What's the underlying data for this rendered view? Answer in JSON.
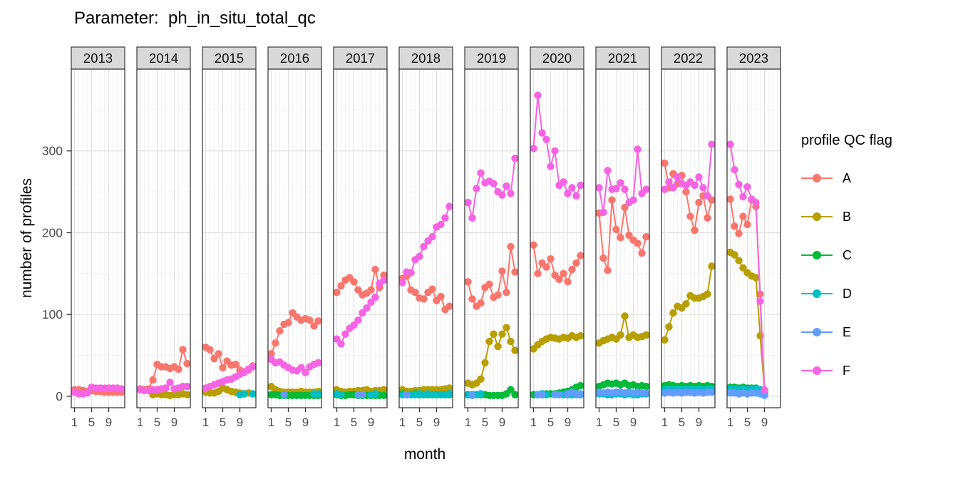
{
  "title": "Parameter:  ph_in_situ_total_qc",
  "chart_data": {
    "type": "line",
    "title": "Parameter:  ph_in_situ_total_qc",
    "xlabel": "month",
    "ylabel": "number of profiles",
    "legend_title": "profile QC flag",
    "legend_position": "right",
    "grid": true,
    "facet_years": [
      "2013",
      "2014",
      "2015",
      "2016",
      "2017",
      "2018",
      "2019",
      "2020",
      "2021",
      "2022",
      "2023"
    ],
    "x_ticks": [
      1,
      5,
      9
    ],
    "x_tick_labels": [
      "1",
      "5",
      "9"
    ],
    "y_ticks": [
      0,
      100,
      200,
      300
    ],
    "y_minor_ticks": [
      50,
      150,
      250,
      350
    ],
    "xlim": [
      0.5,
      12.5
    ],
    "ylim": [
      -14,
      400
    ],
    "strip_fill": "#D9D9D9",
    "series": [
      {
        "name": "A",
        "color": "#F8766D",
        "values_by_year": {
          "2013": [
            8,
            8,
            7,
            6,
            7,
            6,
            6,
            5,
            5,
            5,
            5,
            5
          ],
          "2014": [
            9,
            8,
            9,
            20,
            39,
            36,
            36,
            34,
            36,
            33,
            57,
            40
          ],
          "2015": [
            60,
            57,
            46,
            52,
            35,
            43,
            38,
            39,
            32,
            29,
            32,
            37
          ],
          "2016": [
            52,
            65,
            80,
            88,
            90,
            102,
            97,
            93,
            95,
            93,
            86,
            92
          ],
          "2017": [
            127,
            135,
            142,
            145,
            140,
            130,
            124,
            126,
            130,
            155,
            133,
            148
          ],
          "2018": [
            144,
            147,
            130,
            127,
            120,
            119,
            127,
            131,
            117,
            122,
            106,
            110
          ],
          "2019": [
            140,
            119,
            110,
            114,
            133,
            137,
            121,
            124,
            153,
            127,
            183,
            152
          ],
          "2020": [
            185,
            150,
            163,
            158,
            168,
            148,
            143,
            150,
            140,
            155,
            163,
            172
          ],
          "2021": [
            224,
            169,
            154,
            240,
            204,
            194,
            231,
            197,
            191,
            187,
            175,
            195
          ],
          "2022": [
            285,
            255,
            272,
            260,
            270,
            250,
            220,
            203,
            237,
            245,
            218,
            240
          ],
          "2023": [
            241,
            208,
            199,
            220,
            210,
            240,
            232,
            125,
            5
          ]
        }
      },
      {
        "name": "B",
        "color": "#B79F00",
        "values_by_year": {
          "2014": [
            null,
            null,
            null,
            2,
            3,
            2,
            2,
            1,
            2,
            2,
            3,
            2
          ],
          "2015": [
            5,
            4,
            4,
            6,
            10,
            8,
            6,
            5,
            4,
            3,
            4,
            3
          ],
          "2016": [
            12,
            8,
            6,
            5,
            5,
            5,
            5,
            6,
            5,
            5,
            5,
            6
          ],
          "2017": [
            8,
            6,
            5,
            6,
            6,
            7,
            7,
            8,
            6,
            7,
            7,
            8
          ],
          "2018": [
            8,
            6,
            6,
            7,
            7,
            8,
            8,
            8,
            8,
            8,
            9,
            10
          ],
          "2019": [
            16,
            14,
            16,
            21,
            41,
            67,
            76,
            61,
            76,
            84,
            67,
            56
          ],
          "2020": [
            58,
            63,
            67,
            70,
            72,
            71,
            70,
            72,
            71,
            74,
            72,
            74
          ],
          "2021": [
            65,
            68,
            70,
            72,
            70,
            75,
            98,
            72,
            75,
            72,
            73,
            75
          ],
          "2022": [
            69,
            85,
            102,
            110,
            108,
            113,
            123,
            120,
            120,
            122,
            125,
            159
          ],
          "2023": [
            176,
            173,
            166,
            157,
            151,
            147,
            145,
            74,
            7
          ]
        }
      },
      {
        "name": "C",
        "color": "#00BA38",
        "values_by_year": {
          "2016": [
            2,
            2,
            1,
            1,
            1,
            1,
            1,
            1,
            1,
            1,
            1,
            1
          ],
          "2017": [
            2,
            1,
            1,
            2,
            2,
            1,
            1,
            1,
            1,
            1,
            1,
            1
          ],
          "2018": [
            3,
            2,
            2,
            3,
            2,
            2,
            2,
            2,
            2,
            2,
            2,
            2
          ],
          "2019": [
            2,
            2,
            2,
            2,
            2,
            1,
            1,
            1,
            1,
            3,
            8,
            2
          ],
          "2020": [
            2,
            2,
            2,
            3,
            3,
            3,
            4,
            5,
            6,
            8,
            11,
            13
          ],
          "2021": [
            12,
            14,
            16,
            15,
            16,
            14,
            16,
            13,
            14,
            12,
            13,
            12
          ],
          "2022": [
            13,
            14,
            13,
            12,
            13,
            12,
            13,
            12,
            13,
            12,
            13,
            12
          ],
          "2023": [
            11,
            11,
            10,
            11,
            10,
            10,
            10,
            8,
            2
          ]
        }
      },
      {
        "name": "D",
        "color": "#00BFC4",
        "values_by_year": {
          "2015": [
            null,
            null,
            null,
            null,
            null,
            null,
            null,
            null,
            2,
            3,
            null,
            3
          ],
          "2016": [
            null,
            null,
            null,
            null,
            null,
            null,
            null,
            null,
            null,
            null,
            3,
            3
          ],
          "2017": [
            3,
            2,
            null,
            null,
            null,
            null,
            null,
            null,
            2,
            3,
            null,
            null
          ],
          "2018": [
            2,
            2,
            2,
            2,
            3,
            2,
            3,
            2,
            2,
            2,
            2,
            3
          ],
          "2019": [
            2,
            2,
            2,
            3,
            null,
            null,
            null,
            null,
            null,
            null,
            null,
            null
          ],
          "2020": [
            null,
            2,
            3,
            2,
            null,
            null,
            null,
            2,
            2,
            2,
            2,
            2
          ],
          "2021": [
            3,
            3,
            2,
            2,
            3,
            3,
            2,
            3,
            2,
            2,
            3,
            3
          ],
          "2022": [
            8,
            9,
            8,
            9,
            8,
            9,
            9,
            8,
            9,
            8,
            9,
            9
          ],
          "2023": [
            9,
            9,
            8,
            9,
            8,
            9,
            9,
            8,
            2
          ]
        }
      },
      {
        "name": "E",
        "color": "#619CFF",
        "values_by_year": {
          "2016": [
            null,
            null,
            null,
            2,
            null,
            null,
            null,
            null,
            null,
            null,
            null,
            null
          ],
          "2017": [
            null,
            null,
            null,
            null,
            null,
            2,
            2,
            null,
            null,
            null,
            null,
            null
          ],
          "2018": [
            null,
            2,
            null,
            null,
            null,
            null,
            null,
            null,
            null,
            null,
            null,
            null
          ],
          "2019": [
            null,
            1,
            null,
            null,
            null,
            null,
            null,
            null,
            null,
            null,
            null,
            null
          ],
          "2020": [
            null,
            2,
            2,
            null,
            null,
            2,
            2,
            null,
            3,
            5,
            3,
            3
          ],
          "2021": [
            5,
            4,
            5,
            4,
            5,
            5,
            4,
            5,
            4,
            5,
            4,
            4
          ],
          "2022": [
            4,
            5,
            4,
            5,
            4,
            5,
            5,
            4,
            5,
            4,
            5,
            5
          ],
          "2023": [
            4,
            4,
            3,
            4,
            3,
            4,
            4,
            3,
            1
          ]
        }
      },
      {
        "name": "F",
        "color": "#F564E3",
        "values_by_year": {
          "2013": [
            5,
            3,
            3,
            4,
            11,
            10,
            10,
            10,
            10,
            10,
            10,
            9
          ],
          "2014": [
            8,
            7,
            7,
            8,
            8,
            9,
            10,
            17,
            9,
            10,
            12,
            12
          ],
          "2015": [
            10,
            12,
            14,
            16,
            18,
            20,
            21,
            24,
            27,
            30,
            33,
            36
          ],
          "2016": [
            45,
            41,
            42,
            38,
            35,
            32,
            31,
            35,
            29,
            36,
            39,
            41
          ],
          "2017": [
            70,
            64,
            76,
            83,
            87,
            93,
            102,
            108,
            115,
            121,
            138,
            142
          ],
          "2018": [
            139,
            152,
            151,
            167,
            171,
            183,
            190,
            195,
            207,
            210,
            218,
            232
          ],
          "2019": [
            237,
            218,
            254,
            273,
            261,
            263,
            260,
            250,
            246,
            257,
            248,
            291
          ],
          "2020": [
            303,
            368,
            322,
            314,
            281,
            300,
            258,
            262,
            248,
            255,
            245,
            258
          ],
          "2021": [
            255,
            225,
            276,
            253,
            254,
            261,
            253,
            237,
            240,
            302,
            248,
            253
          ],
          "2022": [
            253,
            262,
            255,
            268,
            260,
            258,
            262,
            258,
            268,
            255,
            245,
            308
          ],
          "2023": [
            308,
            277,
            259,
            244,
            256,
            241,
            237,
            116,
            8
          ]
        }
      }
    ]
  }
}
